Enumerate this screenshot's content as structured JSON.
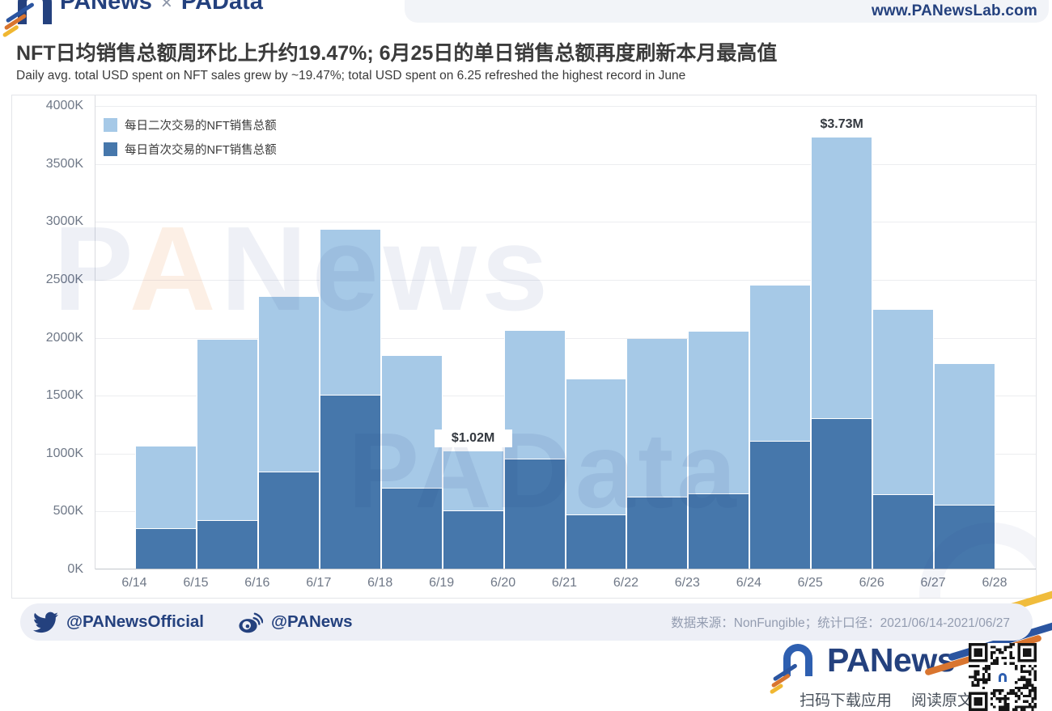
{
  "header": {
    "logo": {
      "brand": "PANews",
      "separator": "×",
      "product": "PAData"
    },
    "website": "www.PANewsLab.com"
  },
  "title": {
    "zh": "NFT日均销售总额周环比上升约19.47%; 6月25日的单日销售总额再度刷新本月最高值",
    "en": "Daily avg. total USD spent on NFT sales grew by ~19.47%; total USD spent on 6.25 refreshed the highest record in June"
  },
  "chart_data": {
    "type": "bar",
    "stacked": true,
    "title": "NFT日均销售总额周环比上升约19.47%; 6月25日的单日销售总额再度刷新本月最高值",
    "categories": [
      "6/14",
      "6/15",
      "6/16",
      "6/17",
      "6/18",
      "6/19",
      "6/20",
      "6/21",
      "6/22",
      "6/23",
      "6/24",
      "6/25",
      "6/26",
      "6/27"
    ],
    "x_tick_labels": [
      "6/14",
      "6/15",
      "6/16",
      "6/17",
      "6/18",
      "6/19",
      "6/20",
      "6/21",
      "6/22",
      "6/23",
      "6/24",
      "6/25",
      "6/26",
      "6/27",
      "6/28"
    ],
    "series": [
      {
        "name": "每日二次交易的NFT销售总额",
        "color": "#A6C9E7",
        "values": [
          710,
          1560,
          1510,
          1430,
          1140,
          520,
          1110,
          1170,
          1370,
          1400,
          1350,
          2430,
          1600,
          1220
        ]
      },
      {
        "name": "每日首次交易的NFT销售总额",
        "color": "#4677AB",
        "values": [
          350,
          420,
          840,
          1500,
          700,
          500,
          950,
          470,
          620,
          650,
          1100,
          1300,
          640,
          550
        ]
      }
    ],
    "totals_k_usd": [
      1060,
      1980,
      2350,
      2930,
      1840,
      1020,
      2060,
      1640,
      1990,
      2050,
      2450,
      3730,
      2240,
      1770
    ],
    "annotations": [
      {
        "index": 5,
        "label": "$1.02M"
      },
      {
        "index": 11,
        "label": "$3.73M"
      }
    ],
    "ylim": [
      0,
      4000
    ],
    "ytick_step_k": 500,
    "y_tick_labels": [
      "0K",
      "500K",
      "1000K",
      "1500K",
      "2000K",
      "2500K",
      "3000K",
      "3500K",
      "4000K"
    ],
    "unit": "K USD",
    "grid": true,
    "legend_position": "top-left"
  },
  "watermarks": {
    "upper": "PANews",
    "lower": "PAData"
  },
  "footer": {
    "twitter_handle": "@PANewsOfficial",
    "weibo_handle": "@PANews",
    "source": "数据来源：NonFungible；统计口径：2021/06/14-2021/06/27"
  },
  "branding": {
    "logo_text": "PANews",
    "scan_text": "扫码下载应用",
    "read_text": "阅读原文"
  },
  "colors": {
    "bar_secondary": "#A6C9E7",
    "bar_primary": "#4677AB",
    "brand_navy": "#24417E",
    "brand_blue": "#2B55A0",
    "brand_orange": "#D9752F",
    "brand_yellow": "#F0B731",
    "footer_bg": "#EDEFF6",
    "axis_text": "#6F7887"
  }
}
